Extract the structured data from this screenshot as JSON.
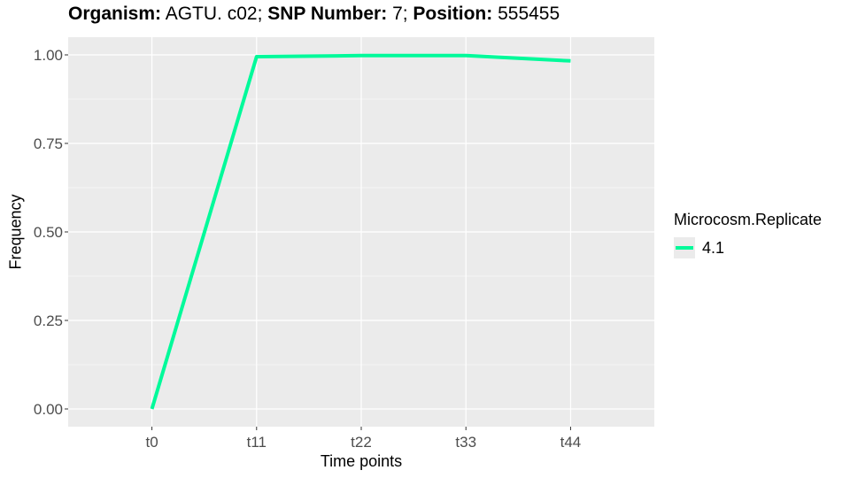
{
  "title": {
    "organism_label": "Organism:",
    "organism_value": " AGTU. c02; ",
    "snp_label": "SNP Number:",
    "snp_value": " 7; ",
    "position_label": "Position:",
    "position_value": " 555455"
  },
  "chart_data": {
    "type": "line",
    "categories": [
      "t0",
      "t11",
      "t22",
      "t33",
      "t44"
    ],
    "series": [
      {
        "name": "4.1",
        "values": [
          0.0,
          0.995,
          0.998,
          0.998,
          0.983
        ],
        "color": "#00FA9A"
      }
    ],
    "xlabel": "Time points",
    "ylabel": "Frequency",
    "ylim": [
      -0.05,
      1.05
    ],
    "yticks": [
      "0.00",
      "0.25",
      "0.50",
      "0.75",
      "1.00"
    ],
    "ytick_values": [
      0,
      0.25,
      0.5,
      0.75,
      1.0
    ],
    "grid": true,
    "legend": {
      "title": "Microcosm.Replicate",
      "position": "right"
    },
    "panel_background": "#EBEBEB"
  }
}
